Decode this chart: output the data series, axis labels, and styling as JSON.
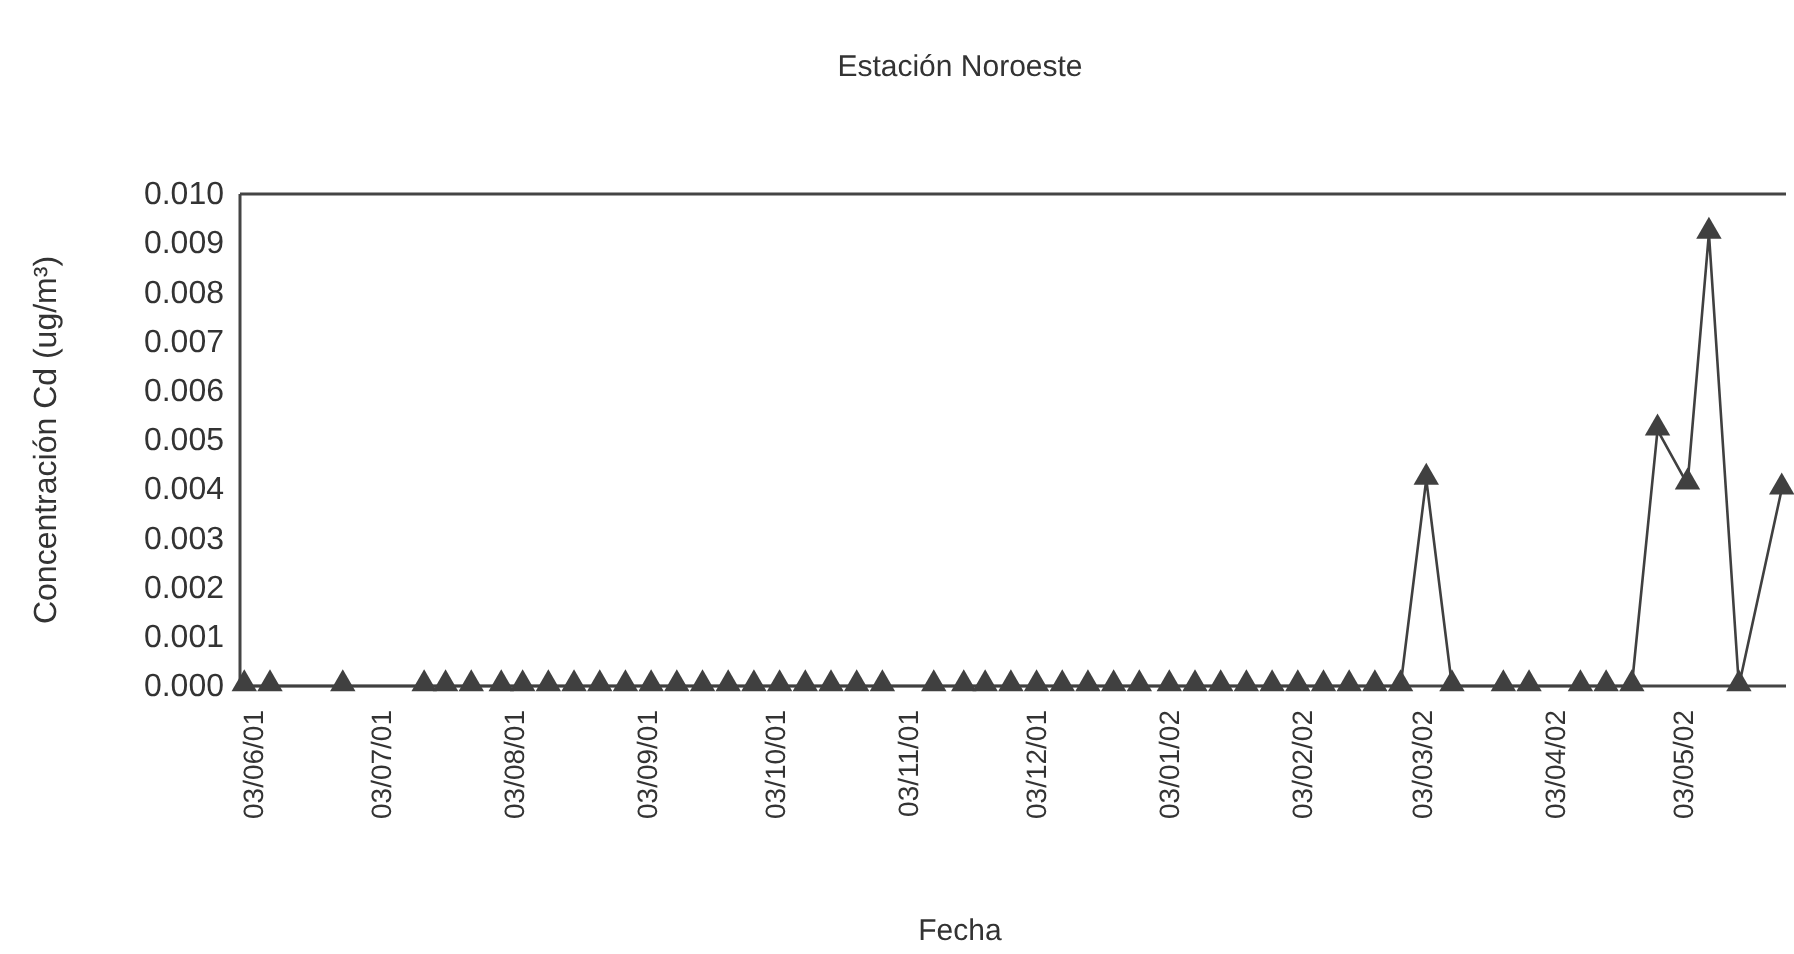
{
  "chart_data": {
    "type": "line",
    "title": "Estación Noroeste",
    "xlabel": "Fecha",
    "ylabel": "Concentración Cd (ug/m³)",
    "marker": "triangle",
    "line_style": "solid",
    "xlim": [
      "2001-05-31",
      "2002-05-27"
    ],
    "xticks": [
      {
        "value": "2001-06-03",
        "label": "03/06/01"
      },
      {
        "value": "2001-07-03",
        "label": "03/07/01"
      },
      {
        "value": "2001-08-03",
        "label": "03/08/01"
      },
      {
        "value": "2001-09-03",
        "label": "03/09/01"
      },
      {
        "value": "2001-10-03",
        "label": "03/10/01"
      },
      {
        "value": "2001-11-03",
        "label": "03/11/01"
      },
      {
        "value": "2001-12-03",
        "label": "03/12/01"
      },
      {
        "value": "2002-01-03",
        "label": "03/01/02"
      },
      {
        "value": "2002-02-03",
        "label": "03/02/02"
      },
      {
        "value": "2002-03-03",
        "label": "03/03/02"
      },
      {
        "value": "2002-04-03",
        "label": "03/04/02"
      },
      {
        "value": "2002-05-03",
        "label": "03/05/02"
      }
    ],
    "ylim": [
      0,
      0.01
    ],
    "yticks": [
      {
        "value": 0,
        "label": "0.000"
      },
      {
        "value": 0.001,
        "label": "0.001"
      },
      {
        "value": 0.002,
        "label": "0.002"
      },
      {
        "value": 0.003,
        "label": "0.003"
      },
      {
        "value": 0.004,
        "label": "0.004"
      },
      {
        "value": 0.005,
        "label": "0.005"
      },
      {
        "value": 0.006,
        "label": "0.006"
      },
      {
        "value": 0.007,
        "label": "0.007"
      },
      {
        "value": 0.008,
        "label": "0.008"
      },
      {
        "value": 0.009,
        "label": "0.009"
      },
      {
        "value": 0.01,
        "label": "0.010"
      }
    ],
    "x": [
      "2001-06-01",
      "2001-06-07",
      "2001-06-24",
      "2001-07-13",
      "2001-07-18",
      "2001-07-24",
      "2001-07-31",
      "2001-08-05",
      "2001-08-11",
      "2001-08-17",
      "2001-08-23",
      "2001-08-29",
      "2001-09-04",
      "2001-09-10",
      "2001-09-16",
      "2001-09-22",
      "2001-09-28",
      "2001-10-04",
      "2001-10-10",
      "2001-10-16",
      "2001-10-22",
      "2001-10-28",
      "2001-11-09",
      "2001-11-16",
      "2001-11-21",
      "2001-11-27",
      "2001-12-03",
      "2001-12-09",
      "2001-12-15",
      "2001-12-21",
      "2001-12-27",
      "2002-01-03",
      "2002-01-09",
      "2002-01-15",
      "2002-01-21",
      "2002-01-27",
      "2002-02-02",
      "2002-02-08",
      "2002-02-14",
      "2002-02-20",
      "2002-02-26",
      "2002-03-04",
      "2002-03-10",
      "2002-03-22",
      "2002-03-28",
      "2002-04-09",
      "2002-04-15",
      "2002-04-21",
      "2002-04-27",
      "2002-05-04",
      "2002-05-09",
      "2002-05-16",
      "2002-05-26"
    ],
    "series": [
      {
        "color": "#404040",
        "values": [
          0,
          0,
          0,
          0,
          0,
          0,
          0,
          0,
          0,
          0,
          0,
          0,
          0,
          0,
          0,
          0,
          0,
          0,
          0,
          0,
          0,
          0,
          0,
          0,
          0,
          0,
          0,
          0,
          0,
          0,
          0,
          0,
          0,
          0,
          0,
          0,
          0,
          0,
          0,
          0,
          0,
          0.0042,
          0,
          0,
          0,
          0,
          0,
          0,
          0.0052,
          0.0041,
          0.0092,
          0,
          0.004
        ]
      }
    ]
  }
}
